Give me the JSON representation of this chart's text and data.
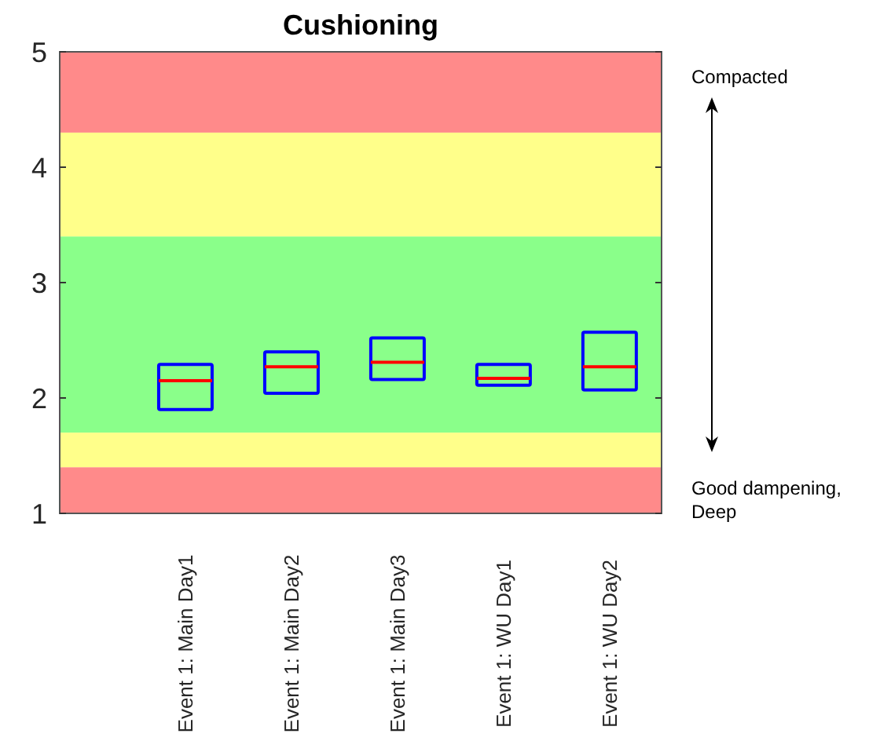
{
  "chart_data": {
    "type": "box",
    "title": "Cushioning",
    "categories": [
      "Event 1: Main Day1",
      "Event 1: Main Day2",
      "Event 1: Main Day3",
      "Event 1: WU Day1",
      "Event 1: WU Day2"
    ],
    "color": "#0000ff",
    "boxes": [
      {
        "low": 1.9,
        "q1": 1.9,
        "median": 2.15,
        "q3": 2.29,
        "high": 2.29
      },
      {
        "low": 2.04,
        "q1": 2.04,
        "median": 2.27,
        "q3": 2.4,
        "high": 2.4
      },
      {
        "low": 2.16,
        "q1": 2.16,
        "median": 2.31,
        "q3": 2.52,
        "high": 2.52
      },
      {
        "low": 2.11,
        "q1": 2.11,
        "median": 2.17,
        "q3": 2.29,
        "high": 2.29
      },
      {
        "low": 2.07,
        "q1": 2.07,
        "median": 2.27,
        "q3": 2.57,
        "high": 2.57
      }
    ],
    "ylim": [
      1,
      5
    ],
    "yticks": [
      1,
      2,
      3,
      4,
      5
    ],
    "bands": [
      {
        "axis": "y",
        "from": 1,
        "to": 1.4,
        "color": "#ff8a8a"
      },
      {
        "axis": "y",
        "from": 1.4,
        "to": 1.7,
        "color": "#ffff8a"
      },
      {
        "axis": "y",
        "from": 1.7,
        "to": 3.4,
        "color": "#8aff8a"
      },
      {
        "axis": "y",
        "from": 3.4,
        "to": 4.3,
        "color": "#ffff8a"
      },
      {
        "axis": "y",
        "from": 4.3,
        "to": 5,
        "color": "#ff8a8a"
      }
    ],
    "annotations": [
      "Compacted",
      "Good dampening,\nDeep"
    ]
  }
}
